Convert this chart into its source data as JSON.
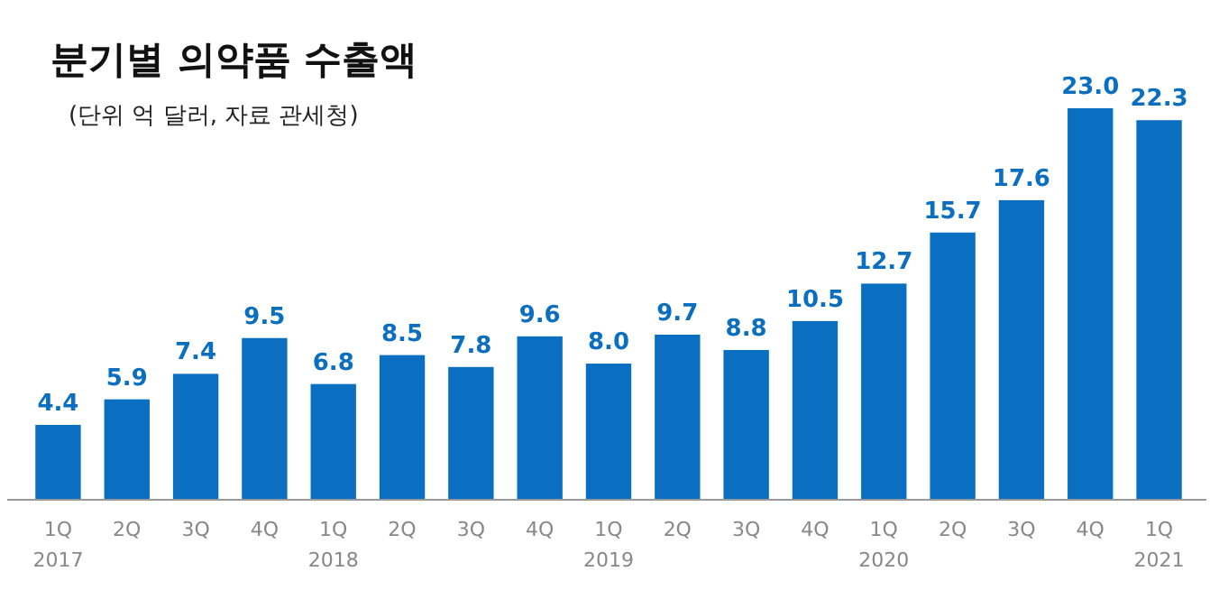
{
  "chart_data": {
    "type": "bar",
    "title": "분기별 의약품 수출액",
    "subtitle": "(단위 억 달러, 자료 관세청)",
    "categories": [
      "1Q\n2017",
      "2Q",
      "3Q",
      "4Q",
      "1Q\n2018",
      "2Q",
      "3Q",
      "4Q",
      "1Q\n2019",
      "2Q",
      "3Q",
      "4Q",
      "1Q\n2020",
      "2Q",
      "3Q",
      "4Q",
      "1Q\n2021"
    ],
    "values": [
      4.4,
      5.9,
      7.4,
      9.5,
      6.8,
      8.5,
      7.8,
      9.6,
      8.0,
      9.7,
      8.8,
      10.5,
      12.7,
      15.7,
      17.6,
      23.0,
      22.3
    ],
    "value_labels": [
      "4.4",
      "5.9",
      "7.4",
      "9.5",
      "6.8",
      "8.5",
      "7.8",
      "9.6",
      "8.0",
      "9.7",
      "8.8",
      "10.5",
      "12.7",
      "15.7",
      "17.6",
      "23.0",
      "22.3"
    ],
    "color": "#0b6fc1",
    "ylim": [
      0,
      23
    ],
    "tick_labels": "x"
  }
}
